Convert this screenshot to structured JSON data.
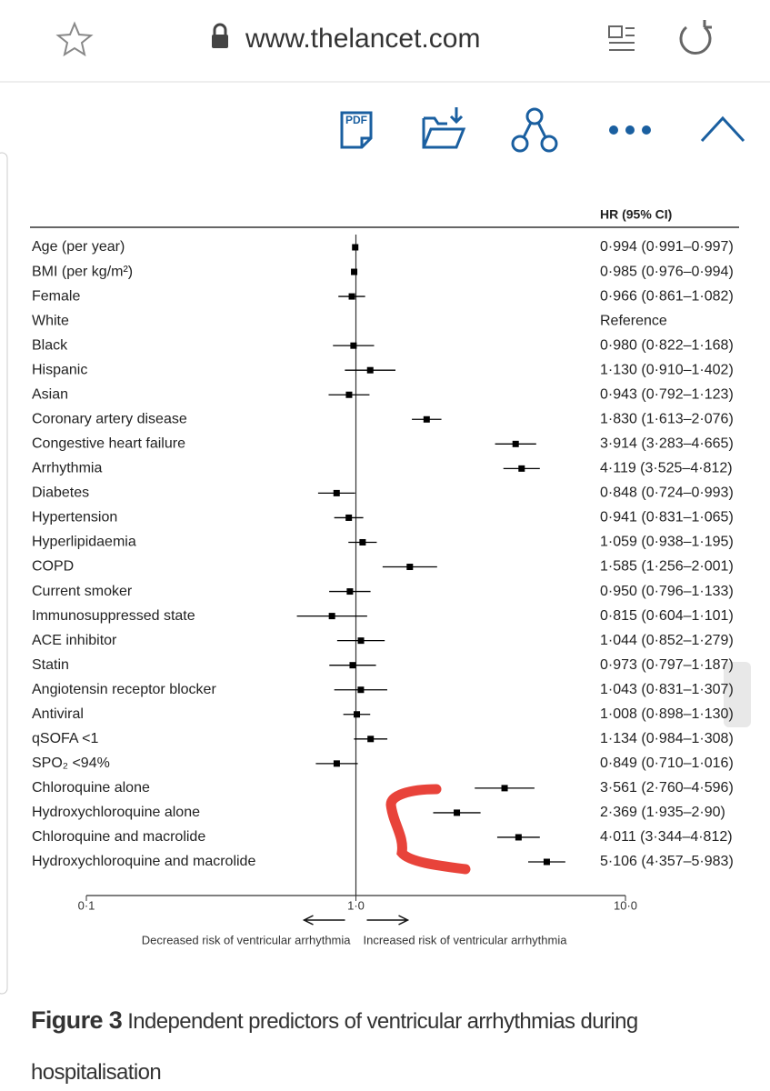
{
  "browser": {
    "url": "www.thelancet.com"
  },
  "toolbar": {
    "pdf_icon_label": "PDF"
  },
  "chart_data": {
    "type": "forest",
    "ci_header": "HR (95% CI)",
    "categories": [
      "Age (per year)",
      "BMI (per kg/m²)",
      "Female",
      "White",
      "Black",
      "Hispanic",
      "Asian",
      "Coronary artery disease",
      "Congestive heart failure",
      "Arrhythmia",
      "Diabetes",
      "Hypertension",
      "Hyperlipidaemia",
      "COPD",
      "Current smoker",
      "Immunosuppressed state",
      "ACE inhibitor",
      "Statin",
      "Angiotensin receptor blocker",
      "Antiviral",
      "qSOFA <1",
      "SPO₂ <94%",
      "Chloroquine alone",
      "Hydroxychloroquine alone",
      "Chloroquine and macrolide",
      "Hydroxychloroquine and macrolide"
    ],
    "values": [
      0.994,
      0.985,
      0.966,
      null,
      0.98,
      1.13,
      0.943,
      1.83,
      3.914,
      4.119,
      0.848,
      0.941,
      1.059,
      1.585,
      0.95,
      0.815,
      1.044,
      0.973,
      1.043,
      1.008,
      1.134,
      0.849,
      3.561,
      2.369,
      4.011,
      5.106
    ],
    "lower": [
      0.991,
      0.976,
      0.861,
      null,
      0.822,
      0.91,
      0.792,
      1.613,
      3.283,
      3.525,
      0.724,
      0.831,
      0.938,
      1.256,
      0.796,
      0.604,
      0.852,
      0.797,
      0.831,
      0.898,
      0.984,
      0.71,
      2.76,
      1.935,
      3.344,
      4.357
    ],
    "upper": [
      0.997,
      0.994,
      1.082,
      null,
      1.168,
      1.402,
      1.123,
      2.076,
      4.665,
      4.812,
      0.993,
      1.065,
      1.195,
      2.001,
      1.133,
      1.101,
      1.279,
      1.187,
      1.307,
      1.13,
      1.308,
      1.016,
      4.596,
      2.9,
      4.812,
      5.983
    ],
    "value_labels": [
      "0·994 (0·991–0·997)",
      "0·985 (0·976–0·994)",
      "0·966 (0·861–1·082)",
      "Reference",
      "0·980 (0·822–1·168)",
      "1·130 (0·910–1·402)",
      "0·943 (0·792–1·123)",
      "1·830 (1·613–2·076)",
      "3·914 (3·283–4·665)",
      "4·119 (3·525–4·812)",
      "0·848 (0·724–0·993)",
      "0·941 (0·831–1·065)",
      "1·059 (0·938–1·195)",
      "1·585 (1·256–2·001)",
      "0·950 (0·796–1·133)",
      "0·815 (0·604–1·101)",
      "1·044 (0·852–1·279)",
      "0·973 (0·797–1·187)",
      "1·043 (0·831–1·307)",
      "1·008 (0·898–1·130)",
      "1·134 (0·984–1·308)",
      "0·849 (0·710–1·016)",
      "3·561 (2·760–4·596)",
      "2·369 (1·935–2·90)",
      "4·011 (3·344–4·812)",
      "5·106 (4·357–5·983)"
    ],
    "xscale": "log",
    "xlim": [
      0.1,
      10
    ],
    "xticks": [
      {
        "value": 0.1,
        "label": "0·1"
      },
      {
        "value": 1,
        "label": "1·0"
      },
      {
        "value": 10,
        "label": "10·0"
      }
    ],
    "reference_line": 1,
    "left_label": "Decreased risk of ventricular arrhythmia",
    "right_label": "Increased risk of ventricular arrhythmia",
    "color": "#000000"
  },
  "figure_caption": {
    "label": "Figure 3",
    "title": "Independent predictors of ventricular arrhythmias during hospitalisation"
  }
}
